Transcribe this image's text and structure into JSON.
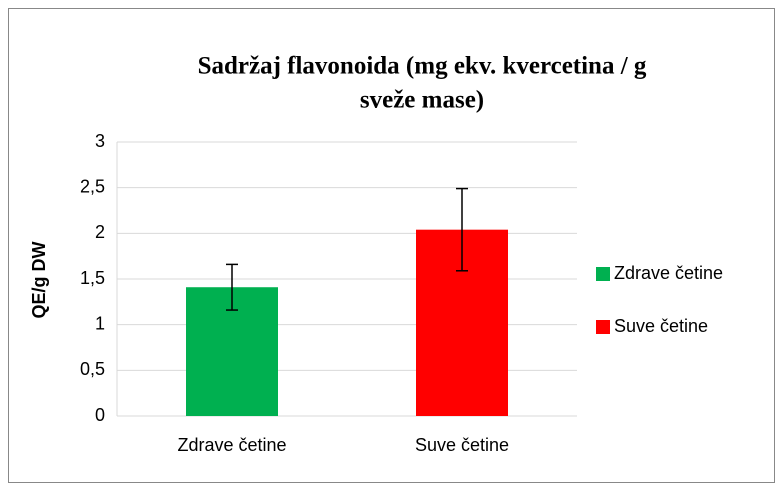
{
  "chart_data": {
    "type": "bar",
    "title": [
      "Sadržaj flavonoida (mg ekv. kvercetina / g",
      "sveže mase)"
    ],
    "y_label": "QE/g DW",
    "categories": [
      "Zdrave četine",
      "Suve četine"
    ],
    "values": [
      1.41,
      2.04
    ],
    "errors": [
      0.25,
      0.45
    ],
    "colors": [
      "#00b050",
      "#ff0000"
    ],
    "ylim": [
      0,
      3
    ],
    "yticks": [
      0,
      {
        "value": 0.5,
        "label": "0,5"
      },
      1,
      {
        "value": 1.5,
        "label": "1,5"
      },
      2,
      {
        "value": 2.5,
        "label": "2,5"
      },
      3
    ],
    "grid": true,
    "legend": "right"
  }
}
